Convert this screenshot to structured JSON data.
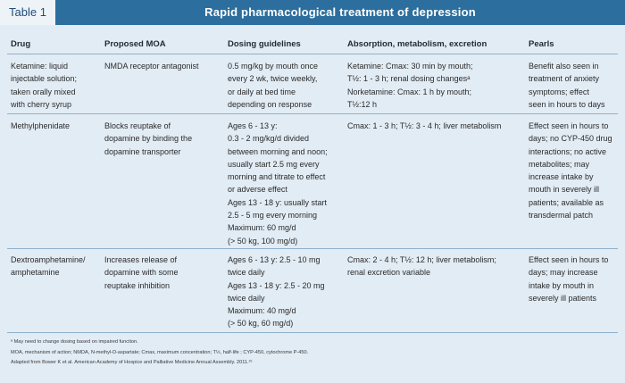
{
  "table_label": "Table 1",
  "title": "Rapid pharmacological treatment of depression",
  "columns": [
    "Drug",
    "Proposed MOA",
    "Dosing guidelines",
    "Absorption, metabolism, excretion",
    "Pearls"
  ],
  "rows": [
    {
      "drug": [
        "Ketamine: liquid",
        "injectable solution;",
        "taken orally mixed",
        "with cherry syrup"
      ],
      "moa": [
        "NMDA receptor antagonist"
      ],
      "dosing": [
        "0.5 mg/kg by mouth once",
        "every 2 wk, twice weekly,",
        "or daily at bed time",
        "depending on response"
      ],
      "ame": [
        "Ketamine: Cmax: 30 min by mouth;",
        "T½: 1 - 3 h; renal dosing changesᵃ",
        "Norketamine: Cmax: 1 h by mouth;",
        "T½:12 h"
      ],
      "pearls": [
        "Benefit also seen in",
        "treatment of anxiety",
        "symptoms; effect",
        "seen in hours to days"
      ]
    },
    {
      "drug": [
        "Methylphenidate"
      ],
      "moa": [
        "Blocks reuptake of",
        "dopamine by binding the",
        "dopamine transporter"
      ],
      "dosing": [
        "Ages 6 - 13 y:",
        "0.3 - 2 mg/kg/d divided",
        "between morning and noon;",
        "usually start 2.5 mg every",
        "morning and titrate to effect",
        "or adverse effect",
        "Ages 13 - 18 y: usually start",
        "2.5 - 5 mg every morning",
        "Maximum: 60 mg/d",
        "(> 50 kg, 100 mg/d)"
      ],
      "ame": [
        "Cmax: 1 - 3 h; T½: 3 - 4 h; liver metabolism"
      ],
      "pearls": [
        "Effect seen in hours to",
        "days; no CYP-450 drug",
        "interactions; no active",
        "metabolites; may",
        "increase intake by",
        "mouth in severely ill",
        "patients; available as",
        "transdermal patch"
      ]
    },
    {
      "drug": [
        "Dextroamphetamine/",
        "amphetamine"
      ],
      "moa": [
        "Increases release of",
        "dopamine with some",
        "reuptake inhibition"
      ],
      "dosing": [
        "Ages 6 - 13 y: 2.5 - 10 mg",
        "twice daily",
        "Ages 13 - 18 y: 2.5 - 20 mg",
        "twice daily",
        "Maximum: 40 mg/d",
        "(> 50 kg, 60 mg/d)"
      ],
      "ame": [
        "Cmax: 2 - 4 h; T½: 12 h; liver metabolism;",
        "renal excretion variable"
      ],
      "pearls": [
        "Effect seen in hours to",
        "days; may increase",
        "intake by mouth in",
        "severely ill patients"
      ]
    }
  ],
  "footnotes": [
    "ᵃ May need to change dosing based on impaired function.",
    "MOA, mechanism of action; NMDA, N-methyl-D-aspartate; Cmax, maximum concentration; T½, half-life ; CYP-450, cytochrome P-450.",
    "Adapted from Bower K et al. American Academy of Hospice and Palliative Medicine Annual Assembly. 2011.²⁵"
  ]
}
